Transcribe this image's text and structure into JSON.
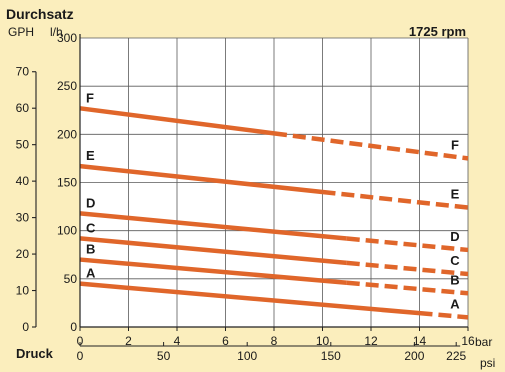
{
  "chart_data": {
    "type": "line",
    "title": "Durchsatz",
    "subtitle": "1725 rpm",
    "ylabel_gph": "GPH",
    "ylabel_lh": "l/h",
    "xlabel": "Druck",
    "xunit_bar": "bar",
    "xunit_psi": "psi",
    "x_bar_ticks": [
      0,
      2,
      4,
      6,
      8,
      10,
      12,
      14,
      16
    ],
    "x_psi_ticks": [
      0,
      50,
      100,
      150,
      200,
      225
    ],
    "y_lh_ticks": [
      0,
      50,
      100,
      150,
      200,
      250,
      300
    ],
    "y_gph_ticks": [
      0,
      10,
      20,
      30,
      40,
      50,
      60,
      70
    ],
    "xlim_bar": [
      0,
      16
    ],
    "ylim_lh": [
      0,
      300
    ],
    "gph_per_lh": 0.264172,
    "psi_per_bar": 14.5038,
    "grid": true,
    "line_color": "#e0662a",
    "series": [
      {
        "name": "A",
        "start_lh": 45,
        "end_lh": 10,
        "solid_until_bar": 14
      },
      {
        "name": "B",
        "start_lh": 70,
        "end_lh": 35,
        "solid_until_bar": 11
      },
      {
        "name": "C",
        "start_lh": 92,
        "end_lh": 55,
        "solid_until_bar": 11
      },
      {
        "name": "D",
        "start_lh": 118,
        "end_lh": 80,
        "solid_until_bar": 11
      },
      {
        "name": "E",
        "start_lh": 167,
        "end_lh": 124,
        "solid_until_bar": 10
      },
      {
        "name": "F",
        "start_lh": 227,
        "end_lh": 175,
        "solid_until_bar": 8
      }
    ]
  }
}
